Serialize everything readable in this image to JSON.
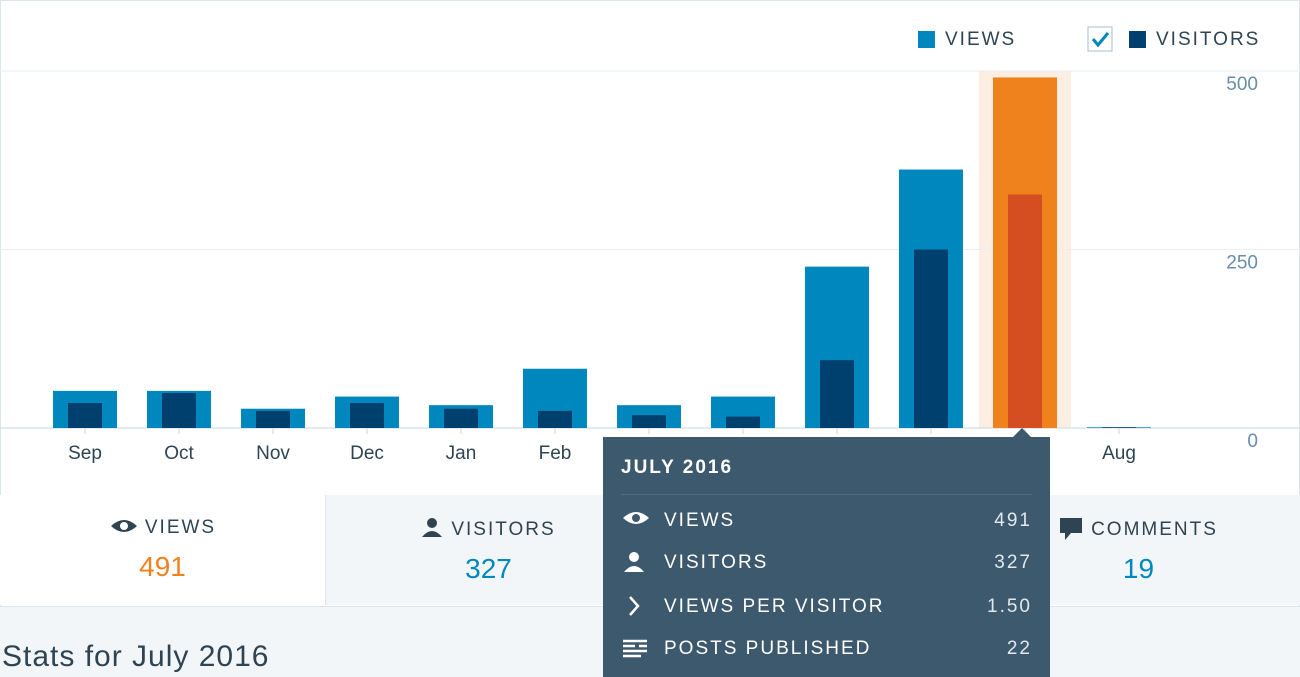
{
  "chart_data": {
    "type": "bar",
    "categories": [
      "Sep",
      "Oct",
      "Nov",
      "Dec",
      "Jan",
      "Feb",
      null,
      null,
      null,
      null,
      null,
      "Aug"
    ],
    "series": [
      {
        "name": "VIEWS",
        "color": "#0087be",
        "highlight_color": "#f0821e",
        "values": [
          52,
          52,
          27,
          44,
          32,
          83,
          32,
          44,
          226,
          362,
          491,
          1
        ]
      },
      {
        "name": "VISITORS",
        "color": "#00406e",
        "highlight_color": "#d54e21",
        "values": [
          35,
          49,
          24,
          35,
          27,
          24,
          18,
          16,
          95,
          250,
          327,
          1
        ]
      }
    ],
    "highlight_index": 10,
    "ylim": [
      0,
      500
    ],
    "yticks": [
      0,
      250,
      500
    ],
    "grid": true
  },
  "tabs": [
    {
      "label": "VIEWS",
      "value": "491"
    },
    {
      "label": "VISITORS",
      "value": "327"
    },
    {
      "label": "COMMENTS",
      "value": "19"
    }
  ],
  "tooltip": {
    "title": "JULY 2016",
    "rows": [
      {
        "label": "VIEWS",
        "value": "491"
      },
      {
        "label": "VISITORS",
        "value": "327"
      },
      {
        "label": "VIEWS PER VISITOR",
        "value": "1.50"
      },
      {
        "label": "POSTS PUBLISHED",
        "value": "22"
      }
    ]
  },
  "footer": "Stats for July 2016"
}
